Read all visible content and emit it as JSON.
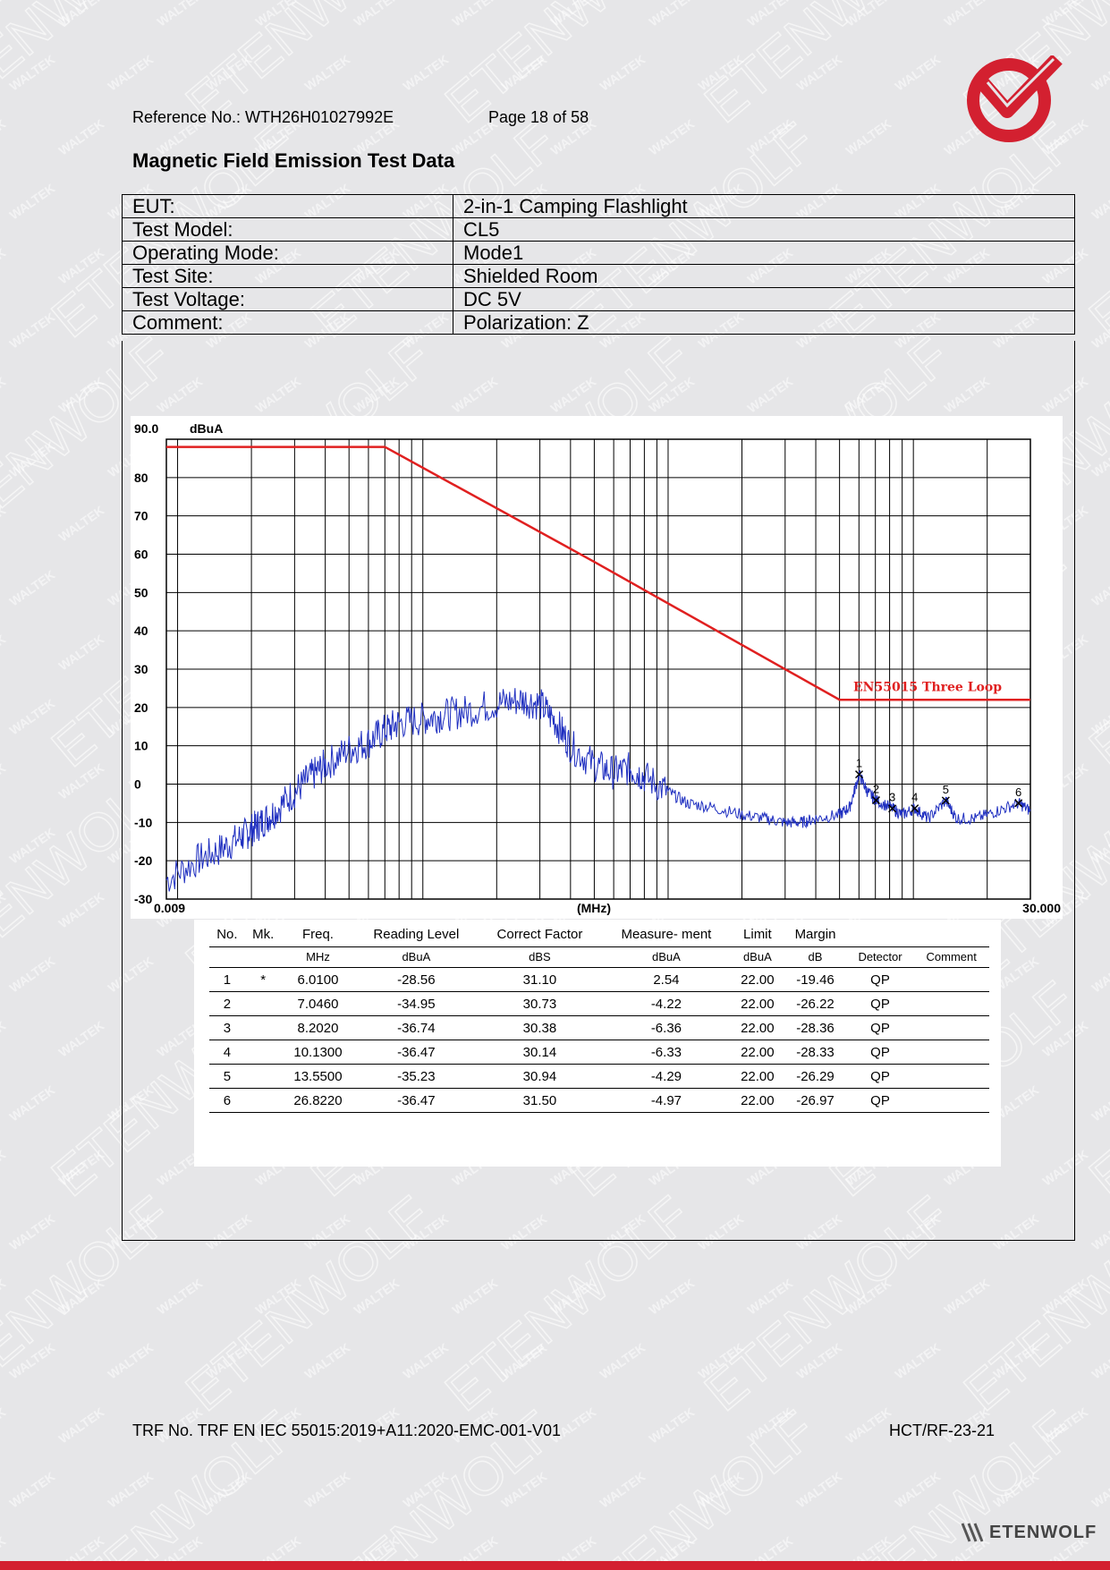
{
  "header": {
    "reference": "Reference No.: WTH26H01027992E",
    "page": "Page 18 of 58",
    "logo_icon": "check-circle-logo",
    "logo_color": "#d32030"
  },
  "title": "Magnetic Field Emission Test Data",
  "info_rows": [
    {
      "label": "EUT:",
      "value": "2-in-1 Camping Flashlight"
    },
    {
      "label": "Test Model:",
      "value": "CL5"
    },
    {
      "label": "Operating Mode:",
      "value": "Mode1"
    },
    {
      "label": "Test Site:",
      "value": "Shielded Room"
    },
    {
      "label": "Test Voltage:",
      "value": "DC 5V"
    },
    {
      "label": "Comment:",
      "value": "Polarization: Z"
    }
  ],
  "chart_data": {
    "type": "line",
    "x_scale": "log",
    "xlim": [
      0.009,
      30.0
    ],
    "ylim": [
      -30,
      90
    ],
    "x_start_label": "0.009",
    "x_end_label": "30.000",
    "xlabel": "(MHz)",
    "ylabel": "dBuA",
    "y_top_label": "90.0",
    "y_ticks": [
      80,
      70,
      60,
      50,
      40,
      30,
      20,
      10,
      0,
      -10,
      -20,
      -30
    ],
    "grid": true,
    "limit_color": "#e02020",
    "trace_color": "#1f2fc0",
    "series": [
      {
        "name": "EN55015 Three Loop",
        "type": "limit",
        "points": [
          [
            0.009,
            88
          ],
          [
            0.07,
            88
          ],
          [
            0.5,
            58
          ],
          [
            5.0,
            22
          ],
          [
            30.0,
            22
          ]
        ]
      },
      {
        "type": "measurement",
        "points": [
          [
            0.009,
            -25
          ],
          [
            0.012,
            -20
          ],
          [
            0.015,
            -17
          ],
          [
            0.018,
            -14
          ],
          [
            0.02,
            -12
          ],
          [
            0.022,
            -10
          ],
          [
            0.025,
            -7
          ],
          [
            0.03,
            -2
          ],
          [
            0.035,
            2
          ],
          [
            0.04,
            5
          ],
          [
            0.05,
            9
          ],
          [
            0.06,
            11
          ],
          [
            0.07,
            14
          ],
          [
            0.08,
            16
          ],
          [
            0.1,
            17
          ],
          [
            0.12,
            18
          ],
          [
            0.15,
            19
          ],
          [
            0.2,
            21
          ],
          [
            0.25,
            22
          ],
          [
            0.3,
            21
          ],
          [
            0.35,
            16
          ],
          [
            0.4,
            10
          ],
          [
            0.5,
            5
          ],
          [
            0.6,
            3
          ],
          [
            0.7,
            4
          ],
          [
            0.8,
            2
          ],
          [
            1.0,
            -2
          ],
          [
            1.2,
            -5
          ],
          [
            1.5,
            -6
          ],
          [
            2.0,
            -8
          ],
          [
            2.5,
            -9
          ],
          [
            3.0,
            -10
          ],
          [
            3.5,
            -10
          ],
          [
            4.0,
            -9
          ],
          [
            5.0,
            -8
          ],
          [
            5.5,
            -6
          ],
          [
            6.01,
            2.54
          ],
          [
            6.5,
            -2
          ],
          [
            7.046,
            -4.22
          ],
          [
            8.202,
            -6.36
          ],
          [
            9.0,
            -8
          ],
          [
            10.13,
            -6.33
          ],
          [
            11.5,
            -9
          ],
          [
            13.55,
            -4.29
          ],
          [
            15.0,
            -9
          ],
          [
            18.0,
            -9
          ],
          [
            22.0,
            -7
          ],
          [
            26.822,
            -4.97
          ],
          [
            30.0,
            -7
          ]
        ]
      }
    ],
    "markers": [
      {
        "label": "1",
        "x": 6.01,
        "y": 2.54
      },
      {
        "label": "2",
        "x": 7.046,
        "y": -4.22
      },
      {
        "label": "3",
        "x": 8.202,
        "y": -6.36
      },
      {
        "label": "4",
        "x": 10.13,
        "y": -6.33
      },
      {
        "label": "5",
        "x": 13.55,
        "y": -4.29
      },
      {
        "label": "6",
        "x": 26.822,
        "y": -4.97
      }
    ]
  },
  "measurements": {
    "headers": [
      "No.",
      "Mk.",
      "Freq.",
      "Reading Level",
      "Correct Factor",
      "Measure- ment",
      "Limit",
      "Margin",
      "",
      ""
    ],
    "units": [
      "",
      "",
      "MHz",
      "dBuA",
      "dBS",
      "dBuA",
      "dBuA",
      "dB",
      "Detector",
      "Comment"
    ],
    "rows": [
      [
        "1",
        "*",
        "6.0100",
        "-28.56",
        "31.10",
        "2.54",
        "22.00",
        "-19.46",
        "QP",
        ""
      ],
      [
        "2",
        "",
        "7.0460",
        "-34.95",
        "30.73",
        "-4.22",
        "22.00",
        "-26.22",
        "QP",
        ""
      ],
      [
        "3",
        "",
        "8.2020",
        "-36.74",
        "30.38",
        "-6.36",
        "22.00",
        "-28.36",
        "QP",
        ""
      ],
      [
        "4",
        "",
        "10.1300",
        "-36.47",
        "30.14",
        "-6.33",
        "22.00",
        "-28.33",
        "QP",
        ""
      ],
      [
        "5",
        "",
        "13.5500",
        "-35.23",
        "30.94",
        "-4.29",
        "22.00",
        "-26.29",
        "QP",
        ""
      ],
      [
        "6",
        "",
        "26.8220",
        "-36.47",
        "31.50",
        "-4.97",
        "22.00",
        "-26.97",
        "QP",
        ""
      ]
    ]
  },
  "footer": {
    "trf": "TRF No. TRF EN IEC 55015:2019+A11:2020-EMC-001-V01",
    "code": "HCT/RF-23-21",
    "brand": "ETENWOLF",
    "brand_icon": "wolf-slash-icon",
    "accent": "#d32030"
  },
  "watermarks": [
    "WALTEK",
    "ETENWOLF"
  ]
}
